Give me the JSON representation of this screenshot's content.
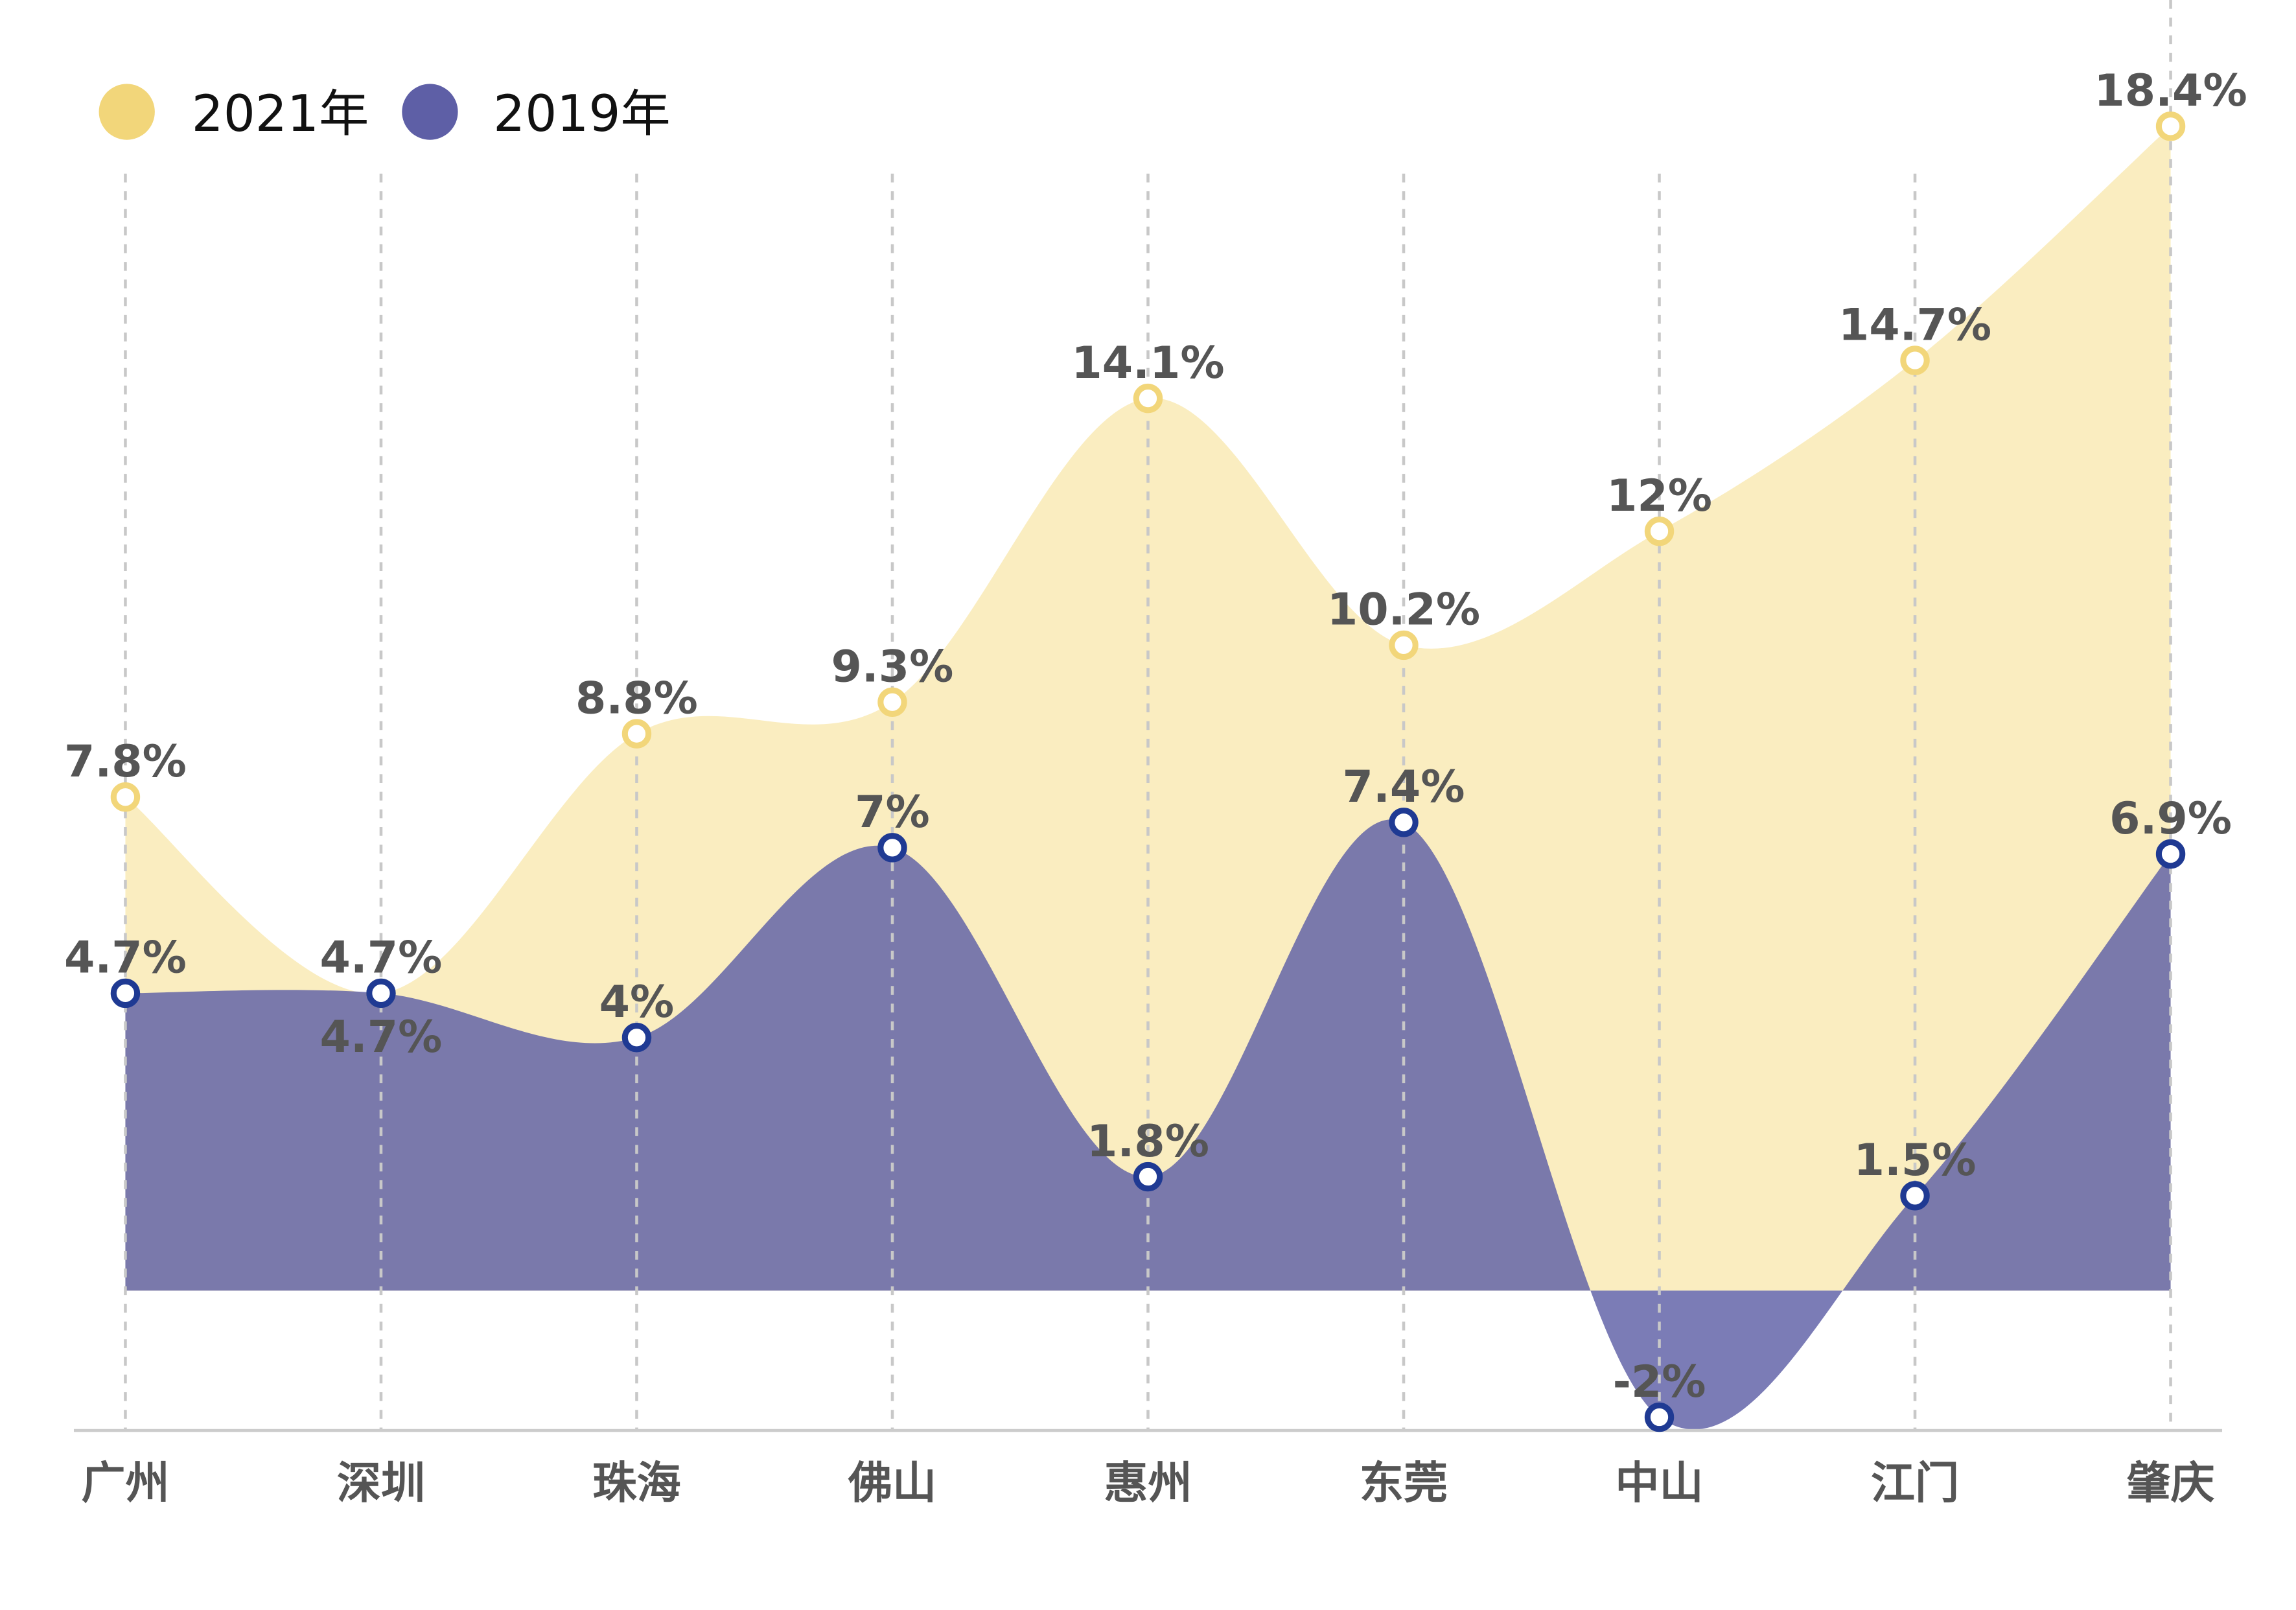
{
  "chart_data": {
    "type": "area",
    "categories": [
      "广州",
      "深圳",
      "珠海",
      "佛山",
      "惠州",
      "东莞",
      "中山",
      "江门",
      "肇庆"
    ],
    "series": [
      {
        "name": "2021年",
        "values": [
          7.8,
          4.7,
          8.8,
          9.3,
          14.1,
          10.2,
          12,
          14.7,
          18.4
        ],
        "labels": [
          "7.8%",
          "4.7%",
          "8.8%",
          "9.3%",
          "14.1%",
          "10.2%",
          "12%",
          "14.7%",
          "18.4%"
        ],
        "color": "#F2D67A",
        "fill": "#FAEDC0"
      },
      {
        "name": "2019年",
        "values": [
          4.7,
          4.7,
          4,
          7,
          1.8,
          7.4,
          -2,
          1.5,
          6.9
        ],
        "labels": [
          "4.7%",
          "4.7%",
          "4%",
          "7%",
          "1.8%",
          "7.4%",
          "-2%",
          "1.5%",
          "6.9%"
        ],
        "color": "#1F3A93",
        "fill": "#5E5FA6"
      }
    ],
    "legend": {
      "position": "top-left",
      "items": [
        "2021年",
        "2019年"
      ],
      "colors": [
        "#F2D67A",
        "#5E5FA6"
      ]
    },
    "ylim": [
      -2.2,
      19.5
    ],
    "grid": "vertical dashed",
    "smooth": true
  }
}
